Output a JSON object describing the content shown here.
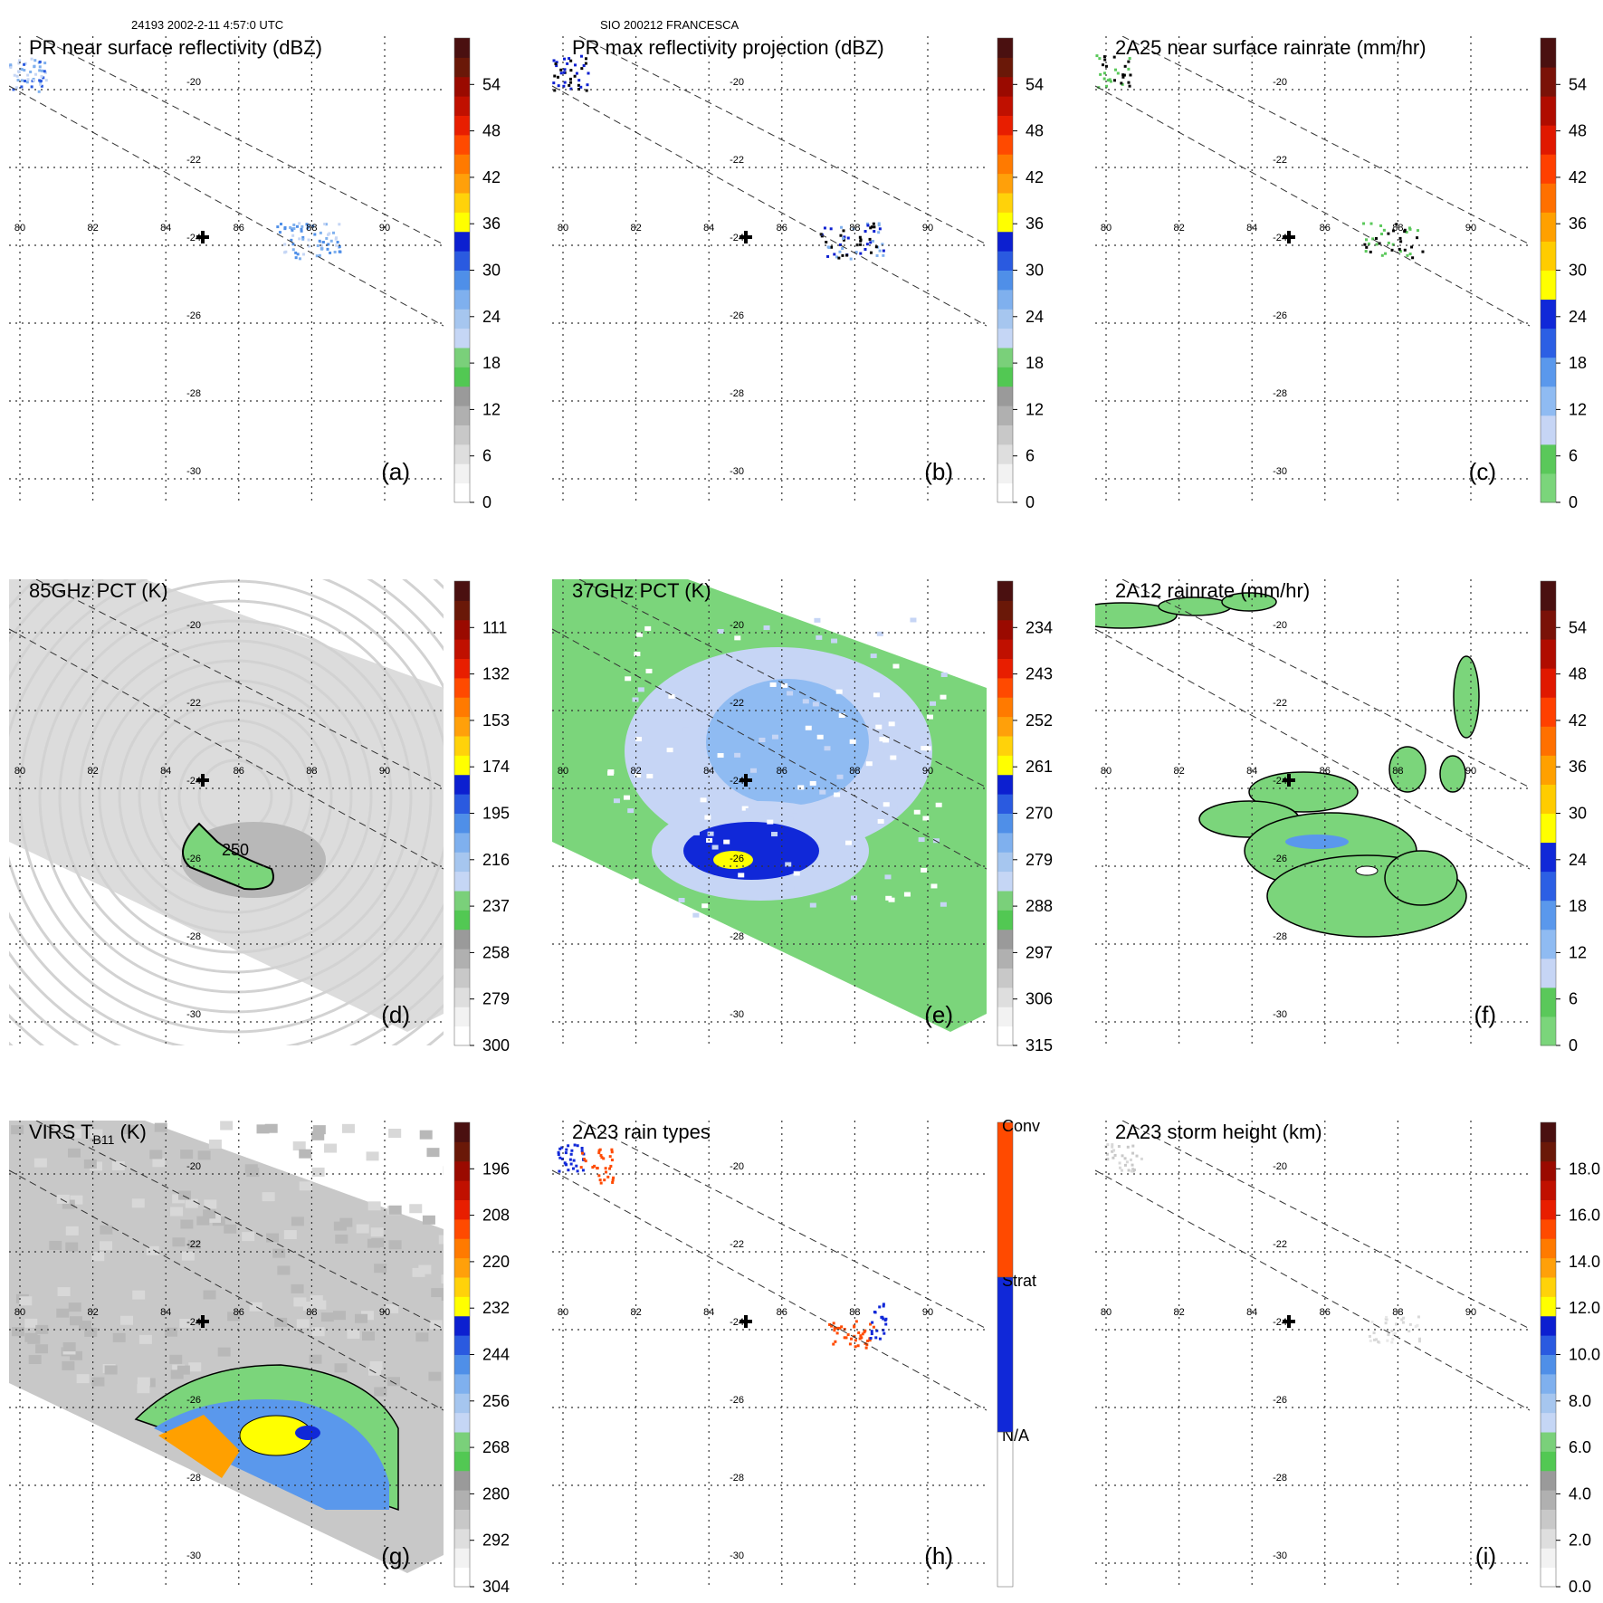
{
  "header": {
    "orbit_time": "24193 2002-2-11 4:57:0 UTC",
    "storm": "SIO 200212 FRANCESCA"
  },
  "chart_data": [
    {
      "type": "heatmap",
      "panel": "a",
      "title": "PR near surface reflectivity (dBZ)",
      "label": "(a)",
      "x_ticks": [
        "80",
        "82",
        "84",
        "86",
        "88",
        "90"
      ],
      "y_ticks": [
        "-20",
        "-22",
        "-24",
        "-26",
        "-28",
        "-30"
      ],
      "colorbar_ticks": [
        "0",
        "6",
        "12",
        "18",
        "24",
        "30",
        "36",
        "42",
        "48",
        "54"
      ],
      "colorbar_range": [
        0,
        60
      ]
    },
    {
      "type": "heatmap",
      "panel": "b",
      "title": "PR max reflectivity projection (dBZ)",
      "label": "(b)",
      "x_ticks": [
        "80",
        "82",
        "84",
        "86",
        "88",
        "90"
      ],
      "y_ticks": [
        "-20",
        "-22",
        "-24",
        "-26",
        "-28",
        "-30"
      ],
      "colorbar_ticks": [
        "0",
        "6",
        "12",
        "18",
        "24",
        "30",
        "36",
        "42",
        "48",
        "54"
      ],
      "colorbar_range": [
        0,
        60
      ]
    },
    {
      "type": "heatmap",
      "panel": "c",
      "title": "2A25 near surface rainrate (mm/hr)",
      "label": "(c)",
      "x_ticks": [
        "80",
        "82",
        "84",
        "86",
        "88",
        "90"
      ],
      "y_ticks": [
        "-20",
        "-22",
        "-24",
        "-26",
        "-28",
        "-30"
      ],
      "colorbar_ticks": [
        "0",
        "6",
        "12",
        "18",
        "24",
        "30",
        "36",
        "42",
        "48",
        "54"
      ],
      "colorbar_range": [
        0,
        60
      ]
    },
    {
      "type": "heatmap",
      "panel": "d",
      "title": "85GHz PCT (K)",
      "label": "(d)",
      "x_ticks": [
        "80",
        "82",
        "84",
        "86",
        "88",
        "90"
      ],
      "y_ticks": [
        "-20",
        "-22",
        "-24",
        "-26",
        "-28",
        "-30"
      ],
      "colorbar_ticks": [
        "300",
        "279",
        "258",
        "237",
        "216",
        "195",
        "174",
        "153",
        "132",
        "111"
      ],
      "colorbar_range": [
        300,
        90
      ],
      "contour_label": "250"
    },
    {
      "type": "heatmap",
      "panel": "e",
      "title": "37GHz PCT (K)",
      "label": "(e)",
      "x_ticks": [
        "80",
        "82",
        "84",
        "86",
        "88",
        "90"
      ],
      "y_ticks": [
        "-20",
        "-22",
        "-24",
        "-26",
        "-28",
        "-30"
      ],
      "colorbar_ticks": [
        "315",
        "306",
        "297",
        "288",
        "279",
        "270",
        "261",
        "252",
        "243",
        "234"
      ],
      "colorbar_range": [
        315,
        225
      ]
    },
    {
      "type": "heatmap",
      "panel": "f",
      "title": "2A12 rainrate (mm/hr)",
      "label": "(f)",
      "x_ticks": [
        "80",
        "82",
        "84",
        "86",
        "88",
        "90"
      ],
      "y_ticks": [
        "-20",
        "-22",
        "-24",
        "-26",
        "-28",
        "-30"
      ],
      "colorbar_ticks": [
        "0",
        "6",
        "12",
        "18",
        "24",
        "30",
        "36",
        "42",
        "48",
        "54"
      ],
      "colorbar_range": [
        0,
        60
      ]
    },
    {
      "type": "heatmap",
      "panel": "g",
      "title_main": "VIRS T",
      "title_sub": "B11",
      "title_unit": " (K)",
      "label": "(g)",
      "x_ticks": [
        "80",
        "82",
        "84",
        "86",
        "88",
        "90"
      ],
      "y_ticks": [
        "-20",
        "-22",
        "-24",
        "-26",
        "-28",
        "-30"
      ],
      "colorbar_ticks": [
        "304",
        "292",
        "280",
        "268",
        "256",
        "244",
        "232",
        "220",
        "208",
        "196"
      ],
      "colorbar_range": [
        304,
        184
      ]
    },
    {
      "type": "heatmap",
      "panel": "h",
      "title": "2A23 rain types",
      "label": "(h)",
      "x_ticks": [
        "80",
        "82",
        "84",
        "86",
        "88",
        "90"
      ],
      "y_ticks": [
        "-20",
        "-22",
        "-24",
        "-26",
        "-28",
        "-30"
      ],
      "categories": [
        "N/A",
        "Strat",
        "Conv"
      ]
    },
    {
      "type": "heatmap",
      "panel": "i",
      "title": "2A23 storm height (km)",
      "label": "(i)",
      "x_ticks": [
        "80",
        "82",
        "84",
        "86",
        "88",
        "90"
      ],
      "y_ticks": [
        "-20",
        "-22",
        "-24",
        "-26",
        "-28",
        "-30"
      ],
      "colorbar_ticks": [
        "0.0",
        "2.0",
        "4.0",
        "6.0",
        "8.0",
        "10.0",
        "12.0",
        "14.0",
        "16.0",
        "18.0"
      ],
      "colorbar_range": [
        0,
        20
      ]
    }
  ],
  "colors": {
    "standard_scale": [
      "#ffffff",
      "#f2f2f2",
      "#dedede",
      "#c8c8c8",
      "#b0b0b0",
      "#9a9a9a",
      "#52c853",
      "#7ad07a",
      "#c5d6f5",
      "#a6c6ef",
      "#7fb0ee",
      "#4f8fe8",
      "#2a5ae0",
      "#0c1fd0",
      "#ffff00",
      "#ffd20a",
      "#ffa00a",
      "#ff7a00",
      "#ff4a00",
      "#e81e00",
      "#c01000",
      "#9a0a00",
      "#6a1808",
      "#4a1010"
    ],
    "rain_scale": [
      "#7bd57b",
      "#5ac85a",
      "#c6d5f5",
      "#8fbbf2",
      "#5a98ec",
      "#2c5fe4",
      "#1028d8",
      "#ffff00",
      "#ffcc00",
      "#ffa000",
      "#ff7000",
      "#ff4000",
      "#e01800",
      "#b00c00",
      "#7a1208",
      "#4a1010"
    ],
    "conv": "#ff4a00",
    "strat": "#1028d8",
    "grid": "#333333"
  }
}
